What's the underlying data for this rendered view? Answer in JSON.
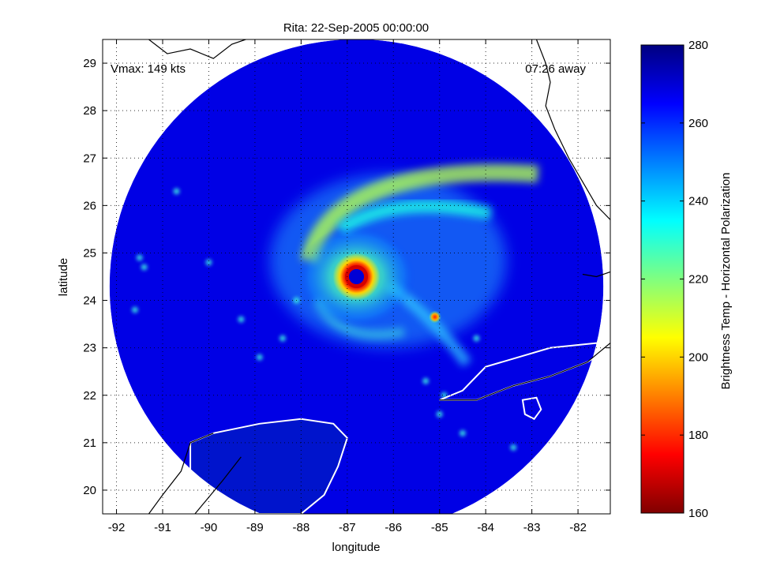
{
  "chart_data": {
    "type": "heatmap",
    "title": "Rita: 22-Sep-2005 00:00:00",
    "xlabel": "longitude",
    "ylabel": "latitude",
    "xlim": [
      -92.3,
      -81.3
    ],
    "ylim": [
      19.5,
      29.5
    ],
    "xticks": [
      -92,
      -91,
      -90,
      -89,
      -88,
      -87,
      -86,
      -85,
      -84,
      -83,
      -82
    ],
    "xtick_labels": [
      "-92",
      "-91",
      "-90",
      "-89",
      "-88",
      "-87",
      "-86",
      "-85",
      "-84",
      "-83",
      "-82"
    ],
    "yticks": [
      20,
      21,
      22,
      23,
      24,
      25,
      26,
      27,
      28,
      29
    ],
    "ytick_labels": [
      "20",
      "21",
      "22",
      "23",
      "24",
      "25",
      "26",
      "27",
      "28",
      "29"
    ],
    "grid": true,
    "annotations": {
      "left": "Vmax: 149 kts",
      "right": "07:26 away"
    },
    "storm_center": {
      "lon": -86.8,
      "lat": 24.5
    },
    "swath_center": {
      "lon": -86.8,
      "lat": 24.3
    },
    "swath_radius_deg": 5.35,
    "colorbar": {
      "label": "Brightness Temp - Horizontal Polarization",
      "min": 160,
      "max": 280,
      "ticks": [
        160,
        180,
        200,
        220,
        240,
        260,
        280
      ],
      "tick_labels": [
        "160",
        "180",
        "200",
        "220",
        "240",
        "260",
        "280"
      ],
      "colormap": "jet"
    },
    "field": {
      "background_temp": 268,
      "eye_temp": 270,
      "eyewall_temp": 170,
      "inner_ring_temp": 205,
      "outer_band_temp": 232,
      "hotspot": {
        "lon": -85.1,
        "lat": 23.65,
        "temp": 180
      }
    }
  },
  "colors": {
    "coastline": "#000000",
    "land_outline": "#ffffff",
    "grid": "#000000"
  }
}
